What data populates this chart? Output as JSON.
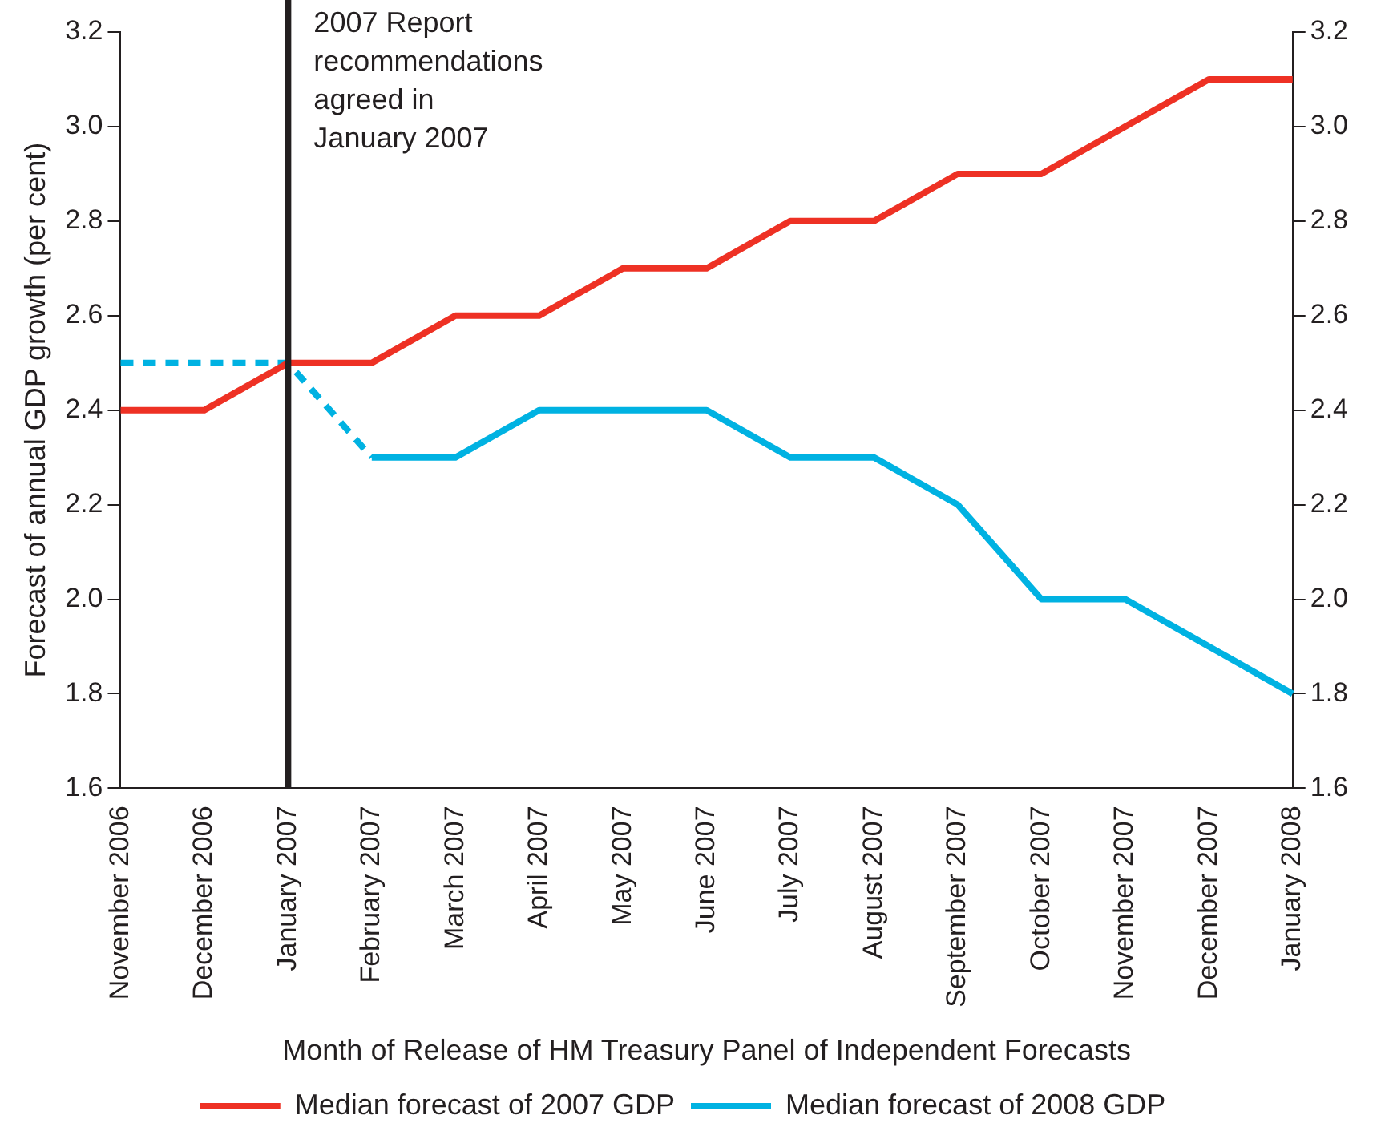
{
  "chart_data": {
    "type": "line",
    "xlabel": "Month of Release of HM Treasury Panel of Independent Forecasts",
    "ylabel": "Forecast of annual GDP growth (per cent)",
    "categories": [
      "November 2006",
      "December 2006",
      "January 2007",
      "February 2007",
      "March 2007",
      "April 2007",
      "May 2007",
      "June 2007",
      "July 2007",
      "August 2007",
      "September 2007",
      "October 2007",
      "November 2007",
      "December 2007",
      "January 2008"
    ],
    "series": [
      {
        "name": "Median forecast of 2007 GDP",
        "color": "#ee3124",
        "values": [
          2.4,
          2.4,
          2.5,
          2.5,
          2.6,
          2.6,
          2.7,
          2.7,
          2.8,
          2.8,
          2.9,
          2.9,
          3.0,
          3.1,
          3.1
        ]
      },
      {
        "name": "Median forecast of 2008 GDP",
        "color": "#00b2e2",
        "values": [
          null,
          null,
          null,
          2.3,
          2.3,
          2.4,
          2.4,
          2.4,
          2.3,
          2.3,
          2.2,
          2.0,
          2.0,
          1.9,
          1.8
        ]
      },
      {
        "color": "#00b2e2",
        "line_style": "dashed",
        "values": [
          2.5,
          2.5,
          2.5,
          2.3,
          null,
          null,
          null,
          null,
          null,
          null,
          null,
          null,
          null,
          null,
          null
        ]
      }
    ],
    "ylim": [
      1.6,
      3.2
    ],
    "yticks": [
      1.6,
      1.8,
      {
        "value": 2,
        "label": "2.0"
      },
      2.2,
      2.4,
      2.6,
      2.8,
      {
        "value": 3,
        "label": "3.0"
      },
      3.2
    ],
    "y2lim": [
      1.6,
      3.2
    ],
    "y2ticks": [
      1.6,
      1.8,
      {
        "value": 2,
        "label": "2.0"
      },
      2.2,
      2.4,
      2.6,
      2.8,
      {
        "value": 3,
        "label": "3.0"
      },
      3.2
    ],
    "ref_lines": [
      {
        "axis": "x",
        "value": "January 2007",
        "label": "2007 Report recommendations agreed in January 2007",
        "color": "#231f20"
      }
    ],
    "grid": false,
    "legend": "bottom",
    "marker": "none",
    "line_style": "solid"
  }
}
